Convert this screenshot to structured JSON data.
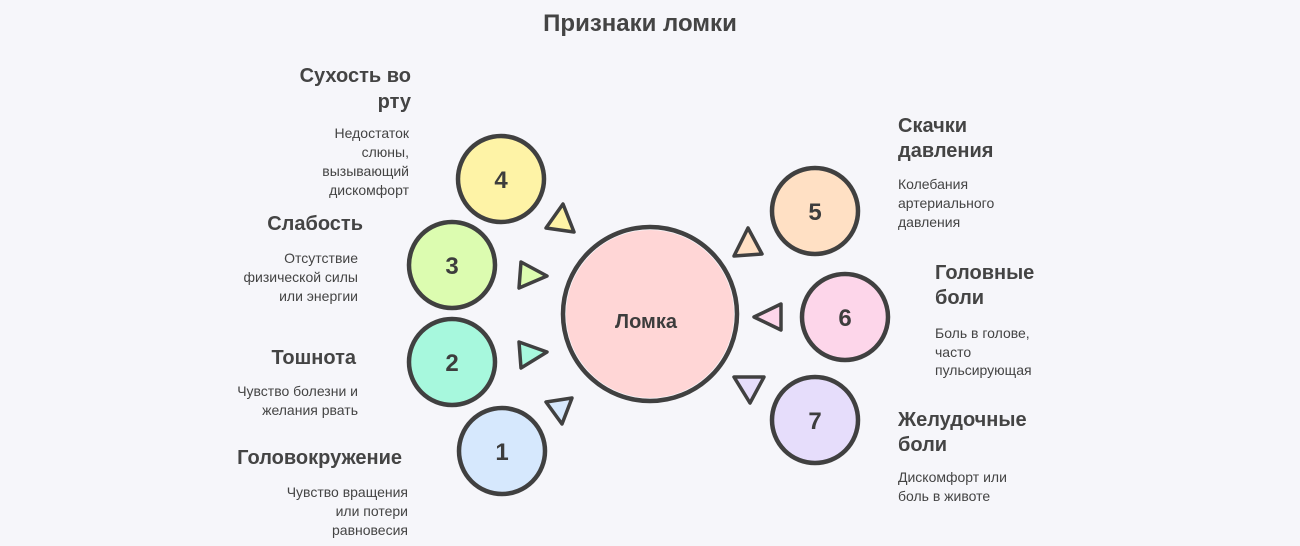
{
  "title": "Признаки ломки",
  "center": {
    "label": "Ломка",
    "color": "#ffd6d6"
  },
  "items": [
    {
      "number": "1",
      "title": [
        "Головокружение"
      ],
      "desc": [
        "Чувство вращения",
        "или потери",
        "равновесия"
      ],
      "color": "#d6e8fd"
    },
    {
      "number": "2",
      "title": [
        "Тошнота"
      ],
      "desc": [
        "Чувство болезни и",
        "желания рвать"
      ],
      "color": "#a7f8dd"
    },
    {
      "number": "3",
      "title": [
        "Слабость"
      ],
      "desc": [
        "Отсутствие",
        "физической силы",
        "или энергии"
      ],
      "color": "#dcfcb0"
    },
    {
      "number": "4",
      "title": [
        "Сухость во",
        "рту"
      ],
      "desc": [
        "Недостаток",
        "слюны,",
        "вызывающий",
        "дискомфорт"
      ],
      "color": "#fef3a6"
    },
    {
      "number": "5",
      "title": [
        "Скачки",
        "давления"
      ],
      "desc": [
        "Колебания",
        "артериального",
        "давления"
      ],
      "color": "#ffe0c4"
    },
    {
      "number": "6",
      "title": [
        "Головные",
        "боли"
      ],
      "desc": [
        "Боль в голове,",
        "часто",
        "пульсирующая"
      ],
      "color": "#fdd6ea"
    },
    {
      "number": "7",
      "title": [
        "Желудочные",
        "боли"
      ],
      "desc": [
        "Дискомфорт или",
        "боль в животе"
      ],
      "color": "#e6ddfb"
    }
  ]
}
